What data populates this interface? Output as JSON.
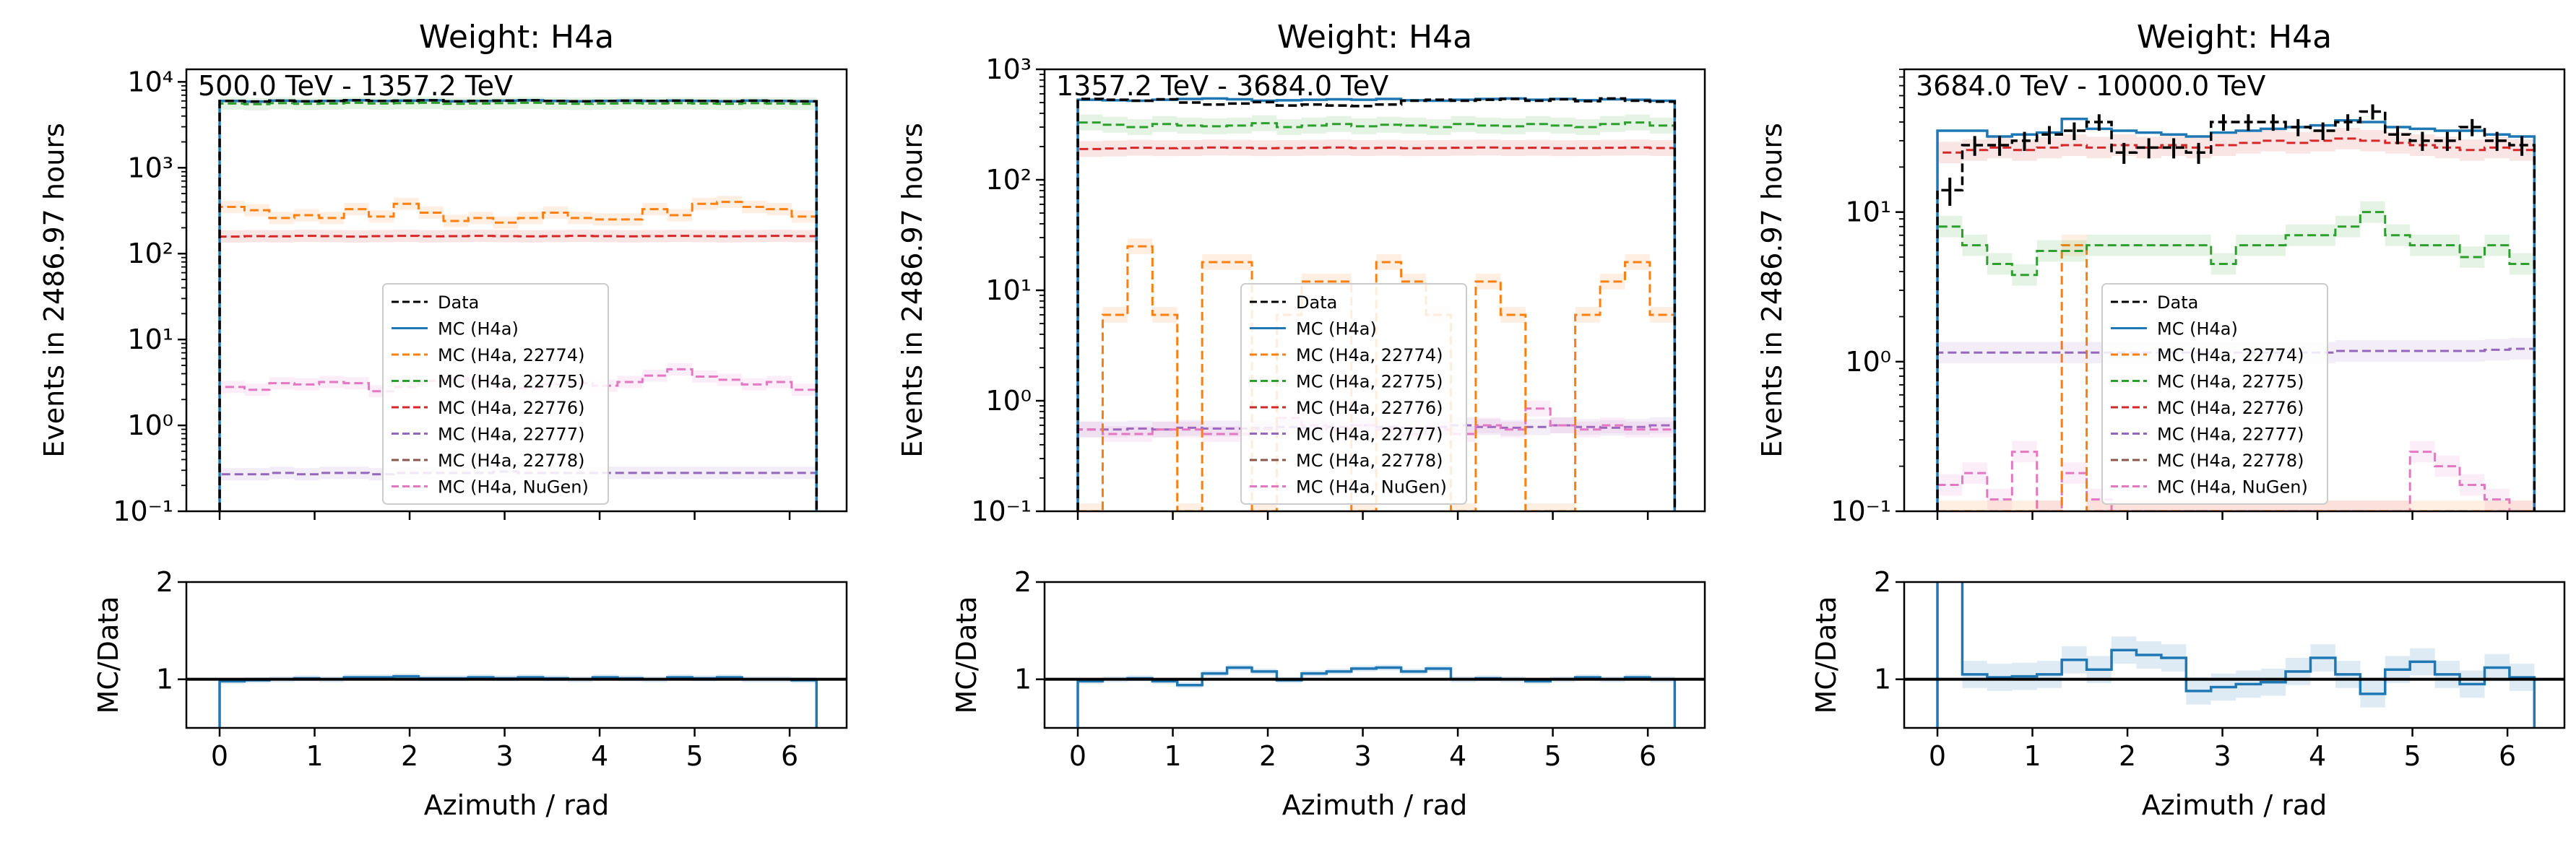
{
  "figure": {
    "colors": {
      "data": "#000000",
      "mc": "#1f77b4",
      "s22774": "#ff7f0e",
      "s22775": "#2ca02c",
      "s22776": "#d62728",
      "s22777": "#9467bd",
      "s22778": "#8c564b",
      "nugen": "#e377c2"
    },
    "legend": {
      "data": "Data",
      "mc": "MC (H4a)",
      "s22774": "MC (H4a, 22774)",
      "s22775": "MC (H4a, 22775)",
      "s22776": "MC (H4a, 22776)",
      "s22777": "MC (H4a, 22777)",
      "s22778": "MC (H4a, 22778)",
      "nugen": "MC (H4a, NuGen)"
    },
    "xlabel": "Azimuth / rad",
    "ylabel_main": "Events in 2486.97 hours",
    "ylabel_ratio": "MC/Data"
  },
  "chart_data": [
    {
      "type": "line",
      "title": "Weight: H4a",
      "energy_range": "500.0 TeV - 1357.2 TeV",
      "yscale": "log",
      "ylim": [
        0.1,
        14000
      ],
      "xlim": [
        -0.35,
        6.6
      ],
      "x_ticks": [
        "0",
        "1",
        "2",
        "3",
        "4",
        "5",
        "6"
      ],
      "y_ticks": [
        "10⁻¹",
        "10⁰",
        "10¹",
        "10²",
        "10³",
        "10⁴"
      ],
      "bin_edges": [
        0,
        0.2618,
        0.5236,
        0.7854,
        1.0472,
        1.309,
        1.5708,
        1.8326,
        2.0944,
        2.3562,
        2.618,
        2.8798,
        3.1416,
        3.4034,
        3.6652,
        3.927,
        4.1888,
        4.4506,
        4.7124,
        4.9742,
        5.236,
        5.4978,
        5.7596,
        6.0214,
        6.2832
      ],
      "series": [
        {
          "key": "data",
          "values": [
            6000,
            5900,
            6050,
            5950,
            6000,
            6100,
            6000,
            6050,
            6100,
            5950,
            6000,
            6050,
            6100,
            6000,
            5950,
            6000,
            6050,
            6000,
            6050,
            6000,
            5950,
            6050,
            6000,
            5950
          ]
        },
        {
          "key": "mc",
          "values": [
            6000,
            5900,
            6050,
            5950,
            6000,
            6100,
            6000,
            6050,
            6100,
            5950,
            6000,
            6050,
            6100,
            6000,
            5950,
            6000,
            6050,
            6000,
            6050,
            6000,
            5950,
            6050,
            6000,
            5950
          ]
        },
        {
          "key": "s22775",
          "values": [
            5600,
            5500,
            5650,
            5550,
            5600,
            5700,
            5600,
            5650,
            5700,
            5550,
            5600,
            5650,
            5700,
            5600,
            5550,
            5600,
            5650,
            5600,
            5650,
            5600,
            5550,
            5650,
            5600,
            5550
          ]
        },
        {
          "key": "s22774",
          "values": [
            350,
            320,
            260,
            280,
            260,
            330,
            270,
            380,
            300,
            240,
            260,
            230,
            260,
            300,
            260,
            250,
            250,
            330,
            280,
            380,
            400,
            350,
            330,
            270
          ]
        },
        {
          "key": "s22776",
          "values": [
            158,
            160,
            159,
            161,
            160,
            158,
            160,
            161,
            159,
            160,
            161,
            160,
            159,
            160,
            161,
            160,
            159,
            160,
            161,
            160,
            159,
            160,
            161,
            160
          ]
        },
        {
          "key": "nugen",
          "values": [
            2.8,
            2.6,
            3.1,
            3.0,
            3.2,
            3.1,
            2.5,
            2.8,
            3.3,
            3.5,
            3.2,
            2.8,
            2.7,
            3.0,
            3.1,
            2.9,
            3.2,
            3.8,
            4.5,
            3.7,
            3.4,
            3.0,
            3.2,
            2.6
          ]
        },
        {
          "key": "s22777",
          "values": [
            0.27,
            0.27,
            0.28,
            0.27,
            0.28,
            0.28,
            0.27,
            0.28,
            0.28,
            0.28,
            0.28,
            0.29,
            0.28,
            0.28,
            0.28,
            0.28,
            0.28,
            0.28,
            0.28,
            0.28,
            0.28,
            0.28,
            0.28,
            0.28
          ]
        }
      ],
      "ratio": {
        "ylim": [
          0.5,
          2
        ],
        "y_ticks": [
          "1",
          "2"
        ],
        "values": [
          0.98,
          0.99,
          1.0,
          1.01,
          1.0,
          1.02,
          1.02,
          1.03,
          1.01,
          1.01,
          1.02,
          1.01,
          1.02,
          1.01,
          1.0,
          1.02,
          1.01,
          1.0,
          1.02,
          1.01,
          1.02,
          1.0,
          1.0,
          0.99
        ]
      }
    },
    {
      "type": "line",
      "title": "Weight: H4a",
      "energy_range": "1357.2 TeV - 3684.0 TeV",
      "yscale": "log",
      "ylim": [
        0.1,
        1000
      ],
      "xlim": [
        -0.35,
        6.6
      ],
      "x_ticks": [
        "0",
        "1",
        "2",
        "3",
        "4",
        "5",
        "6"
      ],
      "y_ticks": [
        "10⁻¹",
        "10⁰",
        "10¹",
        "10²",
        "10³"
      ],
      "bin_edges": [
        0,
        0.2618,
        0.5236,
        0.7854,
        1.0472,
        1.309,
        1.5708,
        1.8326,
        2.0944,
        2.3562,
        2.618,
        2.8798,
        3.1416,
        3.4034,
        3.6652,
        3.927,
        4.1888,
        4.4506,
        4.7124,
        4.9742,
        5.236,
        5.4978,
        5.7596,
        6.0214,
        6.2832
      ],
      "series": [
        {
          "key": "data",
          "values": [
            540,
            530,
            520,
            535,
            500,
            480,
            490,
            505,
            470,
            480,
            470,
            465,
            480,
            520,
            530,
            520,
            530,
            540,
            520,
            535,
            515,
            545,
            520,
            510
          ]
        },
        {
          "key": "mc",
          "values": [
            530,
            525,
            520,
            530,
            540,
            545,
            535,
            520,
            525,
            530,
            535,
            530,
            540,
            525,
            520,
            530,
            540,
            545,
            530,
            540,
            525,
            535,
            530,
            520
          ]
        },
        {
          "key": "s22775",
          "values": [
            330,
            315,
            300,
            320,
            310,
            305,
            310,
            325,
            300,
            310,
            320,
            305,
            315,
            310,
            300,
            320,
            310,
            305,
            320,
            310,
            300,
            320,
            330,
            310
          ]
        },
        {
          "key": "s22776",
          "values": [
            190,
            192,
            195,
            193,
            194,
            196,
            195,
            193,
            194,
            195,
            196,
            194,
            195,
            193,
            194,
            195,
            196,
            194,
            195,
            193,
            194,
            195,
            196,
            194
          ]
        },
        {
          "key": "s22774",
          "values": [
            0.1,
            6,
            25,
            6,
            0.1,
            18,
            18,
            0.1,
            6,
            12,
            12,
            0.1,
            18,
            12,
            6,
            0.1,
            12,
            6,
            0.1,
            0.1,
            6,
            12,
            18,
            6
          ]
        },
        {
          "key": "nugen",
          "values": [
            0.55,
            0.5,
            0.5,
            0.55,
            0.55,
            0.5,
            0.5,
            0.55,
            0.7,
            0.6,
            0.55,
            0.6,
            0.55,
            0.5,
            0.55,
            0.5,
            0.6,
            0.55,
            0.85,
            0.6,
            0.55,
            0.6,
            0.55,
            0.55
          ]
        },
        {
          "key": "s22777",
          "values": [
            0.55,
            0.55,
            0.56,
            0.55,
            0.57,
            0.56,
            0.56,
            0.57,
            0.58,
            0.57,
            0.58,
            0.6,
            0.58,
            0.57,
            0.58,
            0.6,
            0.58,
            0.57,
            0.58,
            0.6,
            0.58,
            0.57,
            0.58,
            0.6
          ]
        }
      ],
      "ratio": {
        "ylim": [
          0.5,
          2
        ],
        "y_ticks": [
          "1",
          "2"
        ],
        "values": [
          0.98,
          1.0,
          1.01,
          0.98,
          0.94,
          1.06,
          1.12,
          1.08,
          0.99,
          1.06,
          1.08,
          1.11,
          1.12,
          1.08,
          1.11,
          1.0,
          1.01,
          1.0,
          0.98,
          1.0,
          1.02,
          1.0,
          1.02,
          1.0
        ]
      }
    },
    {
      "type": "line",
      "title": "Weight: H4a",
      "energy_range": "3684.0 TeV - 10000.0 TeV",
      "yscale": "log",
      "ylim": [
        0.1,
        90
      ],
      "xlim": [
        -0.35,
        6.6
      ],
      "x_ticks": [
        "0",
        "1",
        "2",
        "3",
        "4",
        "5",
        "6"
      ],
      "y_ticks": [
        "10⁻¹",
        "10⁰",
        "10¹"
      ],
      "bin_edges": [
        0,
        0.2618,
        0.5236,
        0.7854,
        1.0472,
        1.309,
        1.5708,
        1.8326,
        2.0944,
        2.3562,
        2.618,
        2.8798,
        3.1416,
        3.4034,
        3.6652,
        3.927,
        4.1888,
        4.4506,
        4.7124,
        4.9742,
        5.236,
        5.4978,
        5.7596,
        6.0214,
        6.2832
      ],
      "series": [
        {
          "key": "data",
          "values": [
            14,
            28,
            28,
            30,
            33,
            35,
            40,
            25,
            27,
            27,
            25,
            40,
            40,
            40,
            37,
            35,
            40,
            47,
            33,
            30,
            30,
            37,
            30,
            28
          ]
        },
        {
          "key": "mc",
          "values": [
            35,
            35,
            32,
            33,
            34,
            42,
            36,
            35,
            34,
            33,
            32,
            34,
            35,
            36,
            37,
            38,
            41,
            40,
            37,
            36,
            35,
            35,
            33,
            32
          ]
        },
        {
          "key": "s22776",
          "values": [
            25,
            26,
            27,
            26,
            27,
            28,
            27,
            28,
            27,
            28,
            27,
            28,
            29,
            30,
            29,
            30,
            31,
            30,
            29,
            28,
            27,
            26,
            27,
            26
          ]
        },
        {
          "key": "s22775",
          "values": [
            8,
            6,
            4.5,
            3.8,
            5.5,
            5.5,
            6,
            6,
            6,
            6,
            6,
            4.5,
            6,
            6,
            7,
            7,
            8,
            10,
            7,
            6,
            6,
            5,
            6,
            4.5
          ]
        },
        {
          "key": "s22777",
          "values": [
            1.15,
            1.15,
            1.15,
            1.15,
            1.15,
            1.15,
            1.15,
            1.15,
            1.15,
            1.15,
            1.15,
            1.15,
            1.15,
            1.15,
            1.15,
            1.15,
            1.18,
            1.18,
            1.18,
            1.18,
            1.18,
            1.18,
            1.2,
            1.22
          ]
        },
        {
          "key": "s22774",
          "values": [
            0.1,
            0.1,
            0.1,
            0.1,
            0.1,
            6,
            0.1,
            0.1,
            0.1,
            0.1,
            0.1,
            0.1,
            0.1,
            0.1,
            0.1,
            0.1,
            0.1,
            0.1,
            0.1,
            0.1,
            0.1,
            0.1,
            0.1,
            0.1
          ]
        },
        {
          "key": "nugen",
          "values": [
            0.15,
            0.18,
            0.12,
            0.25,
            0.1,
            0.18,
            0.12,
            0.1,
            0.1,
            0.1,
            0.1,
            0.1,
            0.1,
            0.1,
            0.1,
            0.1,
            0.1,
            0.1,
            0.1,
            0.25,
            0.2,
            0.15,
            0.12,
            0.1
          ]
        }
      ],
      "ratio": {
        "ylim": [
          0.5,
          2
        ],
        "y_ticks": [
          "1",
          "2"
        ],
        "values": [
          2.5,
          1.05,
          1.02,
          1.03,
          1.05,
          1.2,
          1.1,
          1.3,
          1.25,
          1.22,
          0.88,
          0.92,
          0.95,
          0.97,
          1.08,
          1.22,
          1.05,
          0.85,
          1.1,
          1.18,
          1.05,
          0.95,
          1.12,
          1.02
        ]
      }
    }
  ]
}
